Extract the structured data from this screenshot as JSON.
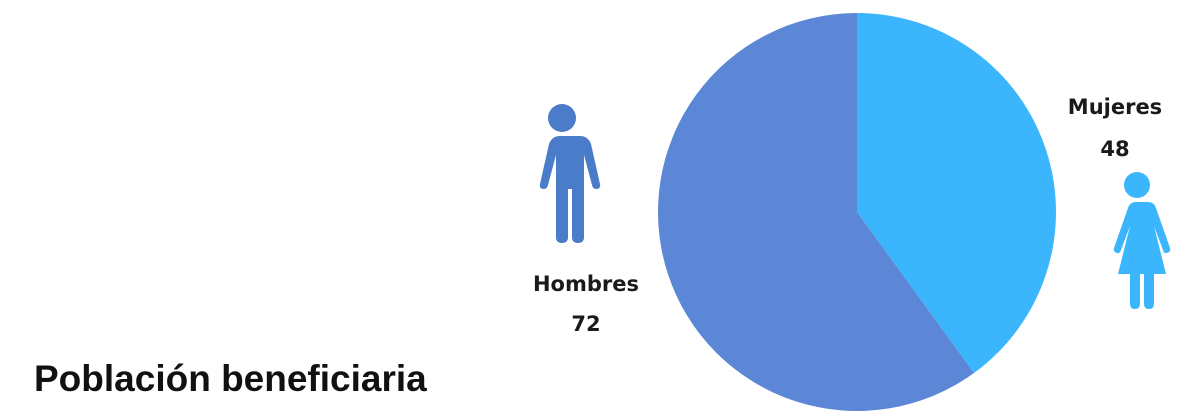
{
  "chart_data": {
    "type": "pie",
    "title": "Población beneficiaria",
    "categories": [
      "Mujeres",
      "Hombres"
    ],
    "values": [
      48,
      72
    ],
    "colors": [
      "#3bb5fb",
      "#5b87d6"
    ]
  }
}
